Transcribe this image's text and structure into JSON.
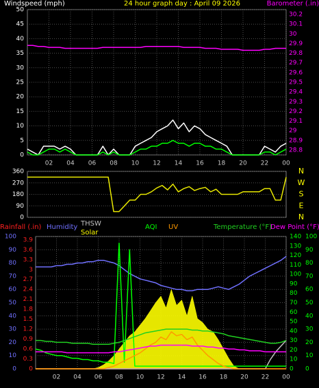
{
  "chart_data": [
    {
      "type": "line",
      "title": "24 hour graph day : April 09 2026",
      "y_label": "Windspeed (mph)",
      "y2_label": "Barometer (.in)",
      "x": [
        0,
        0.5,
        1,
        1.5,
        2,
        2.5,
        3,
        3.5,
        4,
        4.5,
        5,
        5.5,
        6,
        6.5,
        7,
        7.5,
        8,
        8.5,
        9,
        9.5,
        10,
        10.5,
        11,
        11.5,
        12,
        12.5,
        13,
        13.5,
        14,
        14.5,
        15,
        15.5,
        16,
        16.5,
        17,
        17.5,
        18,
        18.5,
        19,
        19.5,
        20,
        20.5,
        21,
        21.5,
        22,
        22.5,
        23,
        23.5,
        24
      ],
      "xlim": [
        0,
        24
      ],
      "xticks": [
        {
          "value": 2,
          "label": "02"
        },
        {
          "value": 4,
          "label": "04"
        },
        {
          "value": 6,
          "label": "06"
        },
        {
          "value": 8,
          "label": "08"
        },
        10,
        12,
        14,
        16,
        18,
        20,
        22,
        {
          "value": 24,
          "label": "00"
        }
      ],
      "ylim": [
        0,
        50
      ],
      "yticks": [
        0,
        5,
        10,
        15,
        20,
        25,
        30,
        35,
        40,
        45,
        50
      ],
      "y2lim": [
        28.75,
        30.25
      ],
      "y2ticks": [
        28.8,
        28.9,
        29,
        29.1,
        29.2,
        29.3,
        29.4,
        29.5,
        29.6,
        29.7,
        29.8,
        29.9,
        30,
        30.1,
        30.2
      ],
      "grid": true,
      "series": [
        {
          "color": "#ffffff",
          "axis": "y",
          "values": [
            2,
            1,
            0,
            3,
            3,
            3,
            2,
            3,
            2,
            0,
            0,
            0,
            0,
            0,
            3,
            0,
            2,
            0,
            0,
            0,
            3,
            4,
            5,
            6,
            8,
            9,
            10,
            12,
            9,
            11,
            8,
            10,
            9,
            7,
            6,
            5,
            4,
            3,
            0,
            0,
            0,
            0,
            0,
            0,
            3,
            2,
            1,
            3,
            4
          ]
        },
        {
          "color": "#00ff00",
          "axis": "y",
          "values": [
            1,
            0,
            0,
            1,
            2,
            2,
            1,
            2,
            1,
            0,
            0,
            0,
            0,
            0,
            1,
            0,
            1,
            0,
            0,
            0,
            1,
            2,
            2,
            3,
            3,
            4,
            4,
            5,
            4,
            4,
            3,
            4,
            4,
            3,
            3,
            2,
            2,
            1,
            0,
            0,
            0,
            0,
            0,
            0,
            1,
            1,
            0,
            1,
            2
          ]
        },
        {
          "color": "#ff00ff",
          "axis": "y2",
          "values": [
            29.88,
            29.88,
            29.87,
            29.87,
            29.86,
            29.86,
            29.86,
            29.85,
            29.85,
            29.85,
            29.85,
            29.85,
            29.85,
            29.85,
            29.86,
            29.86,
            29.86,
            29.86,
            29.86,
            29.86,
            29.86,
            29.86,
            29.87,
            29.87,
            29.87,
            29.87,
            29.87,
            29.87,
            29.87,
            29.86,
            29.86,
            29.86,
            29.86,
            29.85,
            29.85,
            29.85,
            29.84,
            29.84,
            29.84,
            29.84,
            29.83,
            29.83,
            29.83,
            29.83,
            29.84,
            29.84,
            29.85,
            29.85,
            29.85
          ]
        }
      ]
    },
    {
      "type": "line",
      "x": [
        0,
        0.5,
        1,
        1.5,
        2,
        2.5,
        3,
        3.5,
        4,
        4.5,
        5,
        5.5,
        6,
        6.5,
        7,
        7.5,
        8,
        8.5,
        9,
        9.5,
        10,
        10.5,
        11,
        11.5,
        12,
        12.5,
        13,
        13.5,
        14,
        14.5,
        15,
        15.5,
        16,
        16.5,
        17,
        17.5,
        18,
        18.5,
        19,
        19.5,
        20,
        20.5,
        21,
        21.5,
        22,
        22.5,
        23,
        23.5,
        24
      ],
      "xlim": [
        0,
        24
      ],
      "ylim": [
        0,
        360
      ],
      "yticks": [
        0,
        90,
        180,
        270,
        360
      ],
      "y2lim": [
        0,
        360
      ],
      "y2ticks": [
        {
          "value": 360,
          "label": "N"
        },
        {
          "value": 270,
          "label": "W"
        },
        {
          "value": 180,
          "label": "S"
        },
        {
          "value": 90,
          "label": "E"
        },
        {
          "value": 0,
          "label": "N"
        }
      ],
      "grid": true,
      "series": [
        {
          "color": "#e8e800",
          "axis": "y",
          "values": [
            315,
            315,
            315,
            315,
            315,
            315,
            315,
            315,
            315,
            315,
            315,
            315,
            315,
            315,
            315,
            315,
            45,
            45,
            90,
            135,
            135,
            180,
            180,
            200,
            230,
            250,
            215,
            260,
            200,
            225,
            240,
            210,
            225,
            235,
            200,
            220,
            180,
            180,
            180,
            180,
            200,
            200,
            200,
            200,
            225,
            225,
            135,
            135,
            315
          ]
        }
      ]
    },
    {
      "type": "line",
      "x": [
        0,
        0.5,
        1,
        1.5,
        2,
        2.5,
        3,
        3.5,
        4,
        4.5,
        5,
        5.5,
        6,
        6.5,
        7,
        7.5,
        8,
        8.5,
        9,
        9.5,
        10,
        10.5,
        11,
        11.5,
        12,
        12.5,
        13,
        13.5,
        14,
        14.5,
        15,
        15.5,
        16,
        16.5,
        17,
        17.5,
        18,
        18.5,
        19,
        19.5,
        20,
        20.5,
        21,
        21.5,
        22,
        22.5,
        23,
        23.5,
        24
      ],
      "xlim": [
        0,
        24
      ],
      "xticks": [
        {
          "value": 2,
          "label": "02"
        },
        {
          "value": 4,
          "label": "04"
        },
        {
          "value": 6,
          "label": "06"
        },
        {
          "value": 8,
          "label": "08"
        },
        10,
        12,
        14,
        16,
        18,
        20,
        22,
        {
          "value": 24,
          "label": "00"
        }
      ],
      "ylim": [
        0,
        100
      ],
      "yticks": [
        0,
        10,
        20,
        30,
        40,
        50,
        60,
        70,
        80,
        90,
        100
      ],
      "rain_lim": [
        0,
        4
      ],
      "rain_ticks": [
        0,
        0.3,
        0.6,
        0.9,
        1.2,
        1.5,
        1.8,
        2.1,
        2.4,
        2.7,
        3,
        3.3,
        3.6,
        3.9
      ],
      "y2lim": [
        0,
        140
      ],
      "y2ticks": [
        0,
        10,
        20,
        30,
        40,
        50,
        60,
        70,
        80,
        90,
        100,
        110,
        120,
        130,
        140
      ],
      "y3lim": [
        0,
        100
      ],
      "y3ticks": [
        0,
        10,
        20,
        30,
        40,
        50,
        60,
        70,
        80,
        90,
        100
      ],
      "grid": true,
      "series": [
        {
          "name": "Rainfall (.in)",
          "color": "#ff2020",
          "axis": "rain",
          "values": [
            0,
            0,
            0,
            0,
            0,
            0,
            0,
            0,
            0,
            0,
            0,
            0,
            0,
            0,
            0,
            0,
            0,
            0,
            0,
            0,
            0,
            0,
            0,
            0,
            0,
            0,
            0,
            0,
            0,
            0,
            0,
            0,
            0,
            0,
            0,
            0,
            0,
            0,
            0,
            0,
            0,
            0,
            0,
            0,
            0,
            0,
            0,
            0,
            0
          ]
        },
        {
          "name": "Humidity",
          "color": "#7070ff",
          "axis": "y",
          "values": [
            77,
            77,
            77,
            77,
            78,
            78,
            79,
            79,
            80,
            80,
            81,
            81,
            82,
            82,
            81,
            80,
            78,
            75,
            72,
            70,
            68,
            67,
            66,
            65,
            63,
            62,
            61,
            60,
            60,
            59,
            59,
            60,
            60,
            60,
            61,
            62,
            61,
            60,
            62,
            64,
            67,
            70,
            72,
            74,
            76,
            78,
            80,
            82,
            85
          ]
        },
        {
          "name": "THSW",
          "color": "#c0c0c0",
          "axis": "y2",
          "values": [
            0,
            0,
            0,
            0,
            0,
            0,
            0,
            0,
            0,
            0,
            0,
            0,
            0,
            0,
            0,
            0,
            0,
            0,
            0,
            0,
            0,
            0,
            0,
            0,
            0,
            0,
            0,
            0,
            0,
            0,
            0,
            0,
            0,
            0,
            0,
            0,
            0,
            0,
            0,
            0,
            0,
            0,
            0,
            0,
            0,
            10,
            18,
            24,
            30
          ]
        },
        {
          "name": "Solar",
          "color": "#ffff00",
          "axis": "y3",
          "area": true,
          "values": [
            0,
            0,
            0,
            0,
            0,
            0,
            0,
            0,
            0,
            0,
            0,
            0,
            1,
            3,
            6,
            10,
            15,
            20,
            25,
            28,
            33,
            38,
            44,
            50,
            55,
            46,
            60,
            48,
            52,
            40,
            55,
            38,
            35,
            30,
            28,
            22,
            15,
            8,
            2,
            0,
            0,
            0,
            0,
            0,
            0,
            0,
            0,
            0,
            0
          ]
        },
        {
          "name": "AQI",
          "color": "#00ff00",
          "axis": "y3",
          "values": [
            15,
            14,
            12,
            11,
            10,
            10,
            9,
            8,
            8,
            7,
            7,
            6,
            6,
            5,
            5,
            4,
            95,
            5,
            90,
            2,
            2,
            2,
            2,
            2,
            2,
            2,
            2,
            2,
            2,
            2,
            2,
            2,
            2,
            2,
            2,
            2,
            2,
            2,
            2,
            2,
            2,
            2,
            2,
            2,
            2,
            2,
            2,
            2,
            2
          ]
        },
        {
          "name": "UV",
          "color": "#ff9900",
          "axis": "y3",
          "values": [
            0,
            0,
            0,
            0,
            0,
            0,
            0,
            0,
            0,
            0,
            0,
            0,
            0,
            0,
            1,
            2,
            4,
            6,
            8,
            10,
            12,
            15,
            18,
            20,
            24,
            22,
            28,
            25,
            26,
            22,
            24,
            18,
            14,
            10,
            7,
            4,
            2,
            1,
            0,
            0,
            0,
            0,
            0,
            0,
            0,
            0,
            0,
            0,
            0
          ]
        },
        {
          "name": "Temperature (°F)",
          "color": "#20d020",
          "axis": "y2",
          "values": [
            30,
            30,
            29,
            29,
            28,
            28,
            28,
            27,
            27,
            27,
            27,
            26,
            26,
            26,
            26,
            27,
            28,
            30,
            32,
            34,
            36,
            38,
            39,
            40,
            41,
            42,
            42,
            42,
            42,
            42,
            41,
            41,
            40,
            40,
            39,
            38,
            37,
            35,
            34,
            33,
            32,
            31,
            30,
            29,
            28,
            27,
            27,
            28,
            30
          ]
        },
        {
          "name": "Dew Point (°F)",
          "color": "#ff00ff",
          "axis": "y2",
          "values": [
            18,
            18,
            18,
            18,
            18,
            18,
            17,
            17,
            17,
            17,
            17,
            17,
            17,
            17,
            17,
            18,
            18,
            19,
            20,
            21,
            22,
            23,
            24,
            24,
            25,
            25,
            25,
            25,
            25,
            25,
            24,
            24,
            24,
            23,
            23,
            22,
            22,
            21,
            21,
            20,
            20,
            19,
            19,
            19,
            18,
            18,
            18,
            18,
            18
          ]
        }
      ]
    }
  ]
}
